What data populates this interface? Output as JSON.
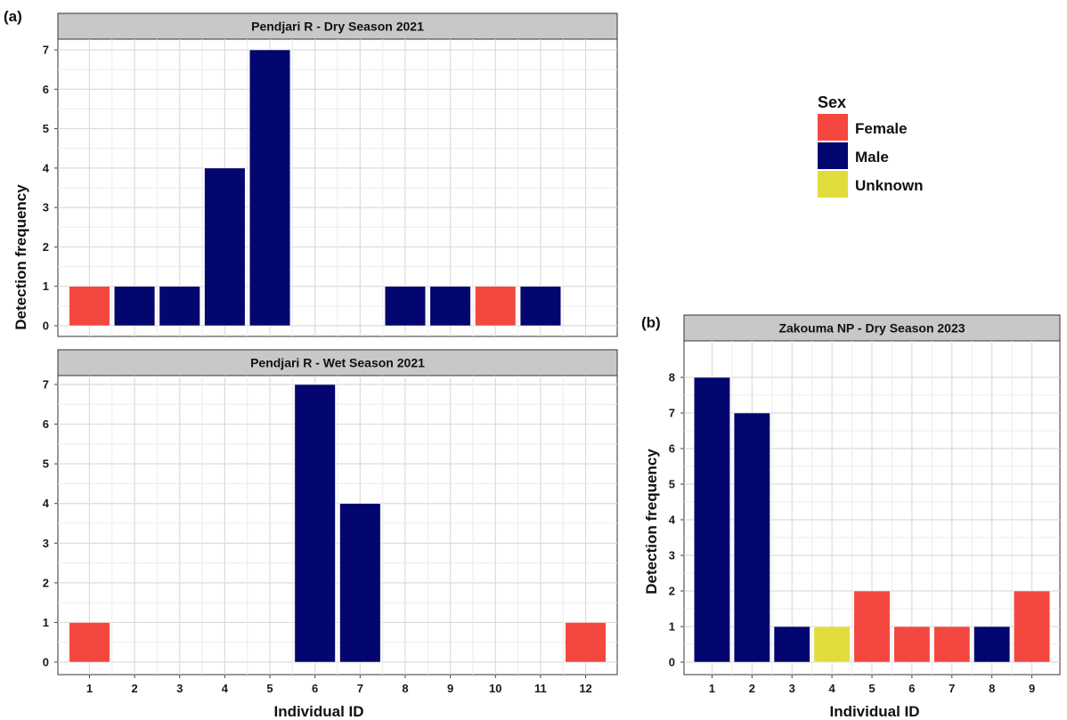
{
  "panel_tags": {
    "a": "(a)",
    "b": "(b)"
  },
  "legend": {
    "title": "Sex",
    "entries": [
      {
        "label": "Female",
        "color": "#f4473f"
      },
      {
        "label": "Male",
        "color": "#03066e"
      },
      {
        "label": "Unknown",
        "color": "#e0dc3c"
      }
    ]
  },
  "chart_data": [
    {
      "type": "bar",
      "title": "Pendjari R - Dry Season 2021",
      "xlabel": "Individual ID",
      "ylabel": "Detection frequency",
      "categories": [
        "1",
        "2",
        "3",
        "4",
        "5",
        "6",
        "7",
        "8",
        "9",
        "10",
        "11",
        "12"
      ],
      "values": [
        1,
        1,
        1,
        4,
        7,
        null,
        null,
        1,
        1,
        1,
        1,
        null
      ],
      "sex": [
        "Female",
        "Male",
        "Male",
        "Male",
        "Male",
        null,
        null,
        "Male",
        "Male",
        "Female",
        "Male",
        null
      ],
      "ylim": [
        0,
        7
      ],
      "yticks": [
        0,
        1,
        2,
        3,
        4,
        5,
        6,
        7
      ],
      "grid": true
    },
    {
      "type": "bar",
      "title": "Pendjari R - Wet Season 2021",
      "xlabel": "Individual ID",
      "ylabel": "Detection frequency",
      "categories": [
        "1",
        "2",
        "3",
        "4",
        "5",
        "6",
        "7",
        "8",
        "9",
        "10",
        "11",
        "12"
      ],
      "values": [
        1,
        null,
        null,
        null,
        null,
        7,
        4,
        null,
        null,
        null,
        null,
        1
      ],
      "sex": [
        "Female",
        null,
        null,
        null,
        null,
        "Male",
        "Male",
        null,
        null,
        null,
        null,
        "Female"
      ],
      "ylim": [
        0,
        7
      ],
      "yticks": [
        0,
        1,
        2,
        3,
        4,
        5,
        6,
        7
      ],
      "grid": true
    },
    {
      "type": "bar",
      "title": "Zakouma NP - Dry Season 2023",
      "xlabel": "Individual ID",
      "ylabel": "Detection frequency",
      "categories": [
        "1",
        "2",
        "3",
        "4",
        "5",
        "6",
        "7",
        "8",
        "9"
      ],
      "values": [
        8,
        7,
        1,
        1,
        2,
        1,
        1,
        1,
        2
      ],
      "sex": [
        "Male",
        "Male",
        "Male",
        "Unknown",
        "Female",
        "Female",
        "Female",
        "Male",
        "Female"
      ],
      "ylim": [
        0,
        8
      ],
      "yticks": [
        0,
        1,
        2,
        3,
        4,
        5,
        6,
        7,
        8
      ],
      "grid": true
    }
  ]
}
